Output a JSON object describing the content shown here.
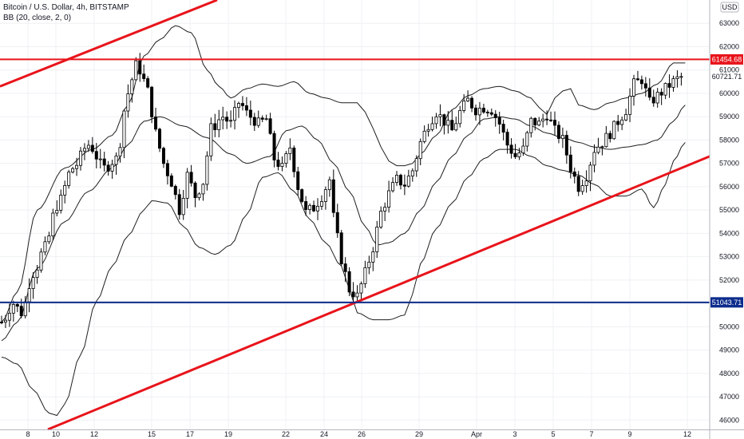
{
  "legend": {
    "symbol": "Bitcoin / U.S. Dollar, 4h, BITSTAMP",
    "indicator": "BB (20, close, 2, 0)"
  },
  "currency_badge": "USD",
  "colors": {
    "up": "#ffffff",
    "down": "#000000",
    "red_line": "#e8141b",
    "blue_line": "#0d2c8c",
    "bb": "#1f1f1f",
    "grid": "#eef0f3"
  },
  "chart_data": {
    "type": "candlestick",
    "title": "Bitcoin / U.S. Dollar, 4h, BITSTAMP",
    "ylim": [
      45600,
      64000
    ],
    "y_ticks": [
      46000,
      47000,
      48000,
      49000,
      50000,
      51000,
      52000,
      53000,
      54000,
      55000,
      56000,
      57000,
      58000,
      59000,
      60000,
      61000,
      62000,
      63000
    ],
    "x_ticks": [
      "8",
      "10",
      "12",
      "15",
      "17",
      "19",
      "22",
      "24",
      "26",
      "29",
      "Apr",
      "3",
      "5",
      "7",
      "9",
      "12"
    ],
    "horizontal_lines": [
      {
        "value": 61454.68,
        "label": "61454.68",
        "color": "#e8141b"
      },
      {
        "value": 51043.71,
        "label": "51043.71",
        "color": "#0d2c8c"
      }
    ],
    "last_price_label": "60721.71",
    "trend_lines": [
      {
        "color": "#e8141b",
        "points": [
          [
            "Mar 4",
            60300
          ],
          [
            "Mar 12 12:00",
            64000
          ]
        ]
      },
      {
        "color": "#e8141b",
        "points": [
          [
            "Mar 9",
            45600
          ],
          [
            "Apr 13",
            57300
          ]
        ]
      }
    ],
    "bb_anchors": {
      "upper": [
        [
          0,
          50200
        ],
        [
          4,
          51500
        ],
        [
          9,
          55000
        ],
        [
          16,
          56800
        ],
        [
          23,
          57600
        ],
        [
          28,
          58200
        ],
        [
          32,
          59500
        ],
        [
          36,
          61600
        ],
        [
          40,
          62300
        ],
        [
          44,
          62900
        ],
        [
          48,
          62600
        ],
        [
          52,
          61000
        ],
        [
          55,
          60300
        ],
        [
          58,
          59800
        ],
        [
          62,
          60200
        ],
        [
          66,
          60400
        ],
        [
          70,
          60300
        ],
        [
          74,
          60500
        ],
        [
          78,
          60000
        ],
        [
          82,
          59800
        ],
        [
          86,
          59600
        ],
        [
          90,
          59600
        ],
        [
          92,
          59200
        ],
        [
          94,
          58500
        ],
        [
          96,
          57700
        ],
        [
          98,
          57100
        ],
        [
          100,
          56900
        ],
        [
          102,
          56900
        ],
        [
          104,
          57000
        ],
        [
          106,
          57400
        ],
        [
          110,
          58200
        ],
        [
          114,
          59300
        ],
        [
          118,
          59900
        ],
        [
          122,
          60200
        ],
        [
          126,
          60300
        ],
        [
          130,
          60100
        ],
        [
          134,
          59800
        ],
        [
          136,
          59400
        ],
        [
          138,
          59100
        ],
        [
          140,
          59800
        ],
        [
          142,
          60100
        ],
        [
          144,
          60200
        ],
        [
          146,
          59500
        ],
        [
          150,
          59300
        ],
        [
          154,
          59600
        ],
        [
          158,
          59800
        ],
        [
          162,
          60000
        ],
        [
          166,
          60400
        ],
        [
          170,
          61300
        ],
        [
          173,
          61300
        ]
      ],
      "middle": [
        [
          0,
          49400
        ],
        [
          4,
          50200
        ],
        [
          9,
          52500
        ],
        [
          16,
          54500
        ],
        [
          22,
          55800
        ],
        [
          28,
          56800
        ],
        [
          32,
          57800
        ],
        [
          36,
          58800
        ],
        [
          40,
          59000
        ],
        [
          46,
          58600
        ],
        [
          52,
          58100
        ],
        [
          58,
          57400
        ],
        [
          62,
          57000
        ],
        [
          68,
          57300
        ],
        [
          72,
          58400
        ],
        [
          76,
          58600
        ],
        [
          80,
          58000
        ],
        [
          84,
          57000
        ],
        [
          88,
          55800
        ],
        [
          92,
          54300
        ],
        [
          95,
          53500
        ],
        [
          98,
          53600
        ],
        [
          102,
          54000
        ],
        [
          106,
          55000
        ],
        [
          110,
          56200
        ],
        [
          114,
          57300
        ],
        [
          118,
          58200
        ],
        [
          122,
          58900
        ],
        [
          126,
          59000
        ],
        [
          130,
          58900
        ],
        [
          134,
          58600
        ],
        [
          138,
          58300
        ],
        [
          142,
          58100
        ],
        [
          146,
          57900
        ],
        [
          150,
          57700
        ],
        [
          154,
          57600
        ],
        [
          158,
          57700
        ],
        [
          162,
          57800
        ],
        [
          166,
          58000
        ],
        [
          170,
          58800
        ],
        [
          173,
          59500
        ]
      ],
      "lower": [
        [
          0,
          48700
        ],
        [
          4,
          48400
        ],
        [
          8,
          47300
        ],
        [
          12,
          46300
        ],
        [
          14,
          46200
        ],
        [
          16,
          46700
        ],
        [
          20,
          48800
        ],
        [
          24,
          51100
        ],
        [
          28,
          52600
        ],
        [
          32,
          53900
        ],
        [
          36,
          55000
        ],
        [
          38,
          55400
        ],
        [
          42,
          55300
        ],
        [
          46,
          54300
        ],
        [
          50,
          53400
        ],
        [
          54,
          53100
        ],
        [
          58,
          53500
        ],
        [
          62,
          54800
        ],
        [
          66,
          56400
        ],
        [
          70,
          56600
        ],
        [
          74,
          55800
        ],
        [
          78,
          54600
        ],
        [
          82,
          53600
        ],
        [
          86,
          52600
        ],
        [
          88,
          51600
        ],
        [
          90,
          50600
        ],
        [
          94,
          50300
        ],
        [
          98,
          50300
        ],
        [
          102,
          50500
        ],
        [
          104,
          51400
        ],
        [
          106,
          52700
        ],
        [
          110,
          54200
        ],
        [
          114,
          55300
        ],
        [
          118,
          56400
        ],
        [
          122,
          57200
        ],
        [
          126,
          57600
        ],
        [
          130,
          57600
        ],
        [
          134,
          57300
        ],
        [
          138,
          56900
        ],
        [
          142,
          56700
        ],
        [
          146,
          56500
        ],
        [
          150,
          56100
        ],
        [
          154,
          55600
        ],
        [
          158,
          55600
        ],
        [
          162,
          55900
        ],
        [
          165,
          55100
        ],
        [
          168,
          56100
        ],
        [
          170,
          57100
        ],
        [
          173,
          57900
        ]
      ]
    },
    "price_path_anchors": [
      [
        0,
        50200
      ],
      [
        3,
        51000
      ],
      [
        5,
        50600
      ],
      [
        8,
        52300
      ],
      [
        11,
        53400
      ],
      [
        14,
        55200
      ],
      [
        18,
        56800
      ],
      [
        22,
        57800
      ],
      [
        26,
        56800
      ],
      [
        29,
        57200
      ],
      [
        32,
        60000
      ],
      [
        34,
        61200
      ],
      [
        35,
        61000
      ],
      [
        37,
        60100
      ],
      [
        39,
        58300
      ],
      [
        41,
        57000
      ],
      [
        43,
        56200
      ],
      [
        45,
        55000
      ],
      [
        47,
        56500
      ],
      [
        49,
        55600
      ],
      [
        51,
        56200
      ],
      [
        53,
        58500
      ],
      [
        56,
        59000
      ],
      [
        58,
        58700
      ],
      [
        60,
        59600
      ],
      [
        63,
        59000
      ],
      [
        65,
        58700
      ],
      [
        67,
        58900
      ],
      [
        69,
        57200
      ],
      [
        71,
        56800
      ],
      [
        73,
        57700
      ],
      [
        75,
        56000
      ],
      [
        77,
        54900
      ],
      [
        79,
        55100
      ],
      [
        81,
        55600
      ],
      [
        83,
        56300
      ],
      [
        84,
        54700
      ],
      [
        86,
        52900
      ],
      [
        88,
        51600
      ],
      [
        90,
        51300
      ],
      [
        92,
        52300
      ],
      [
        94,
        53400
      ],
      [
        96,
        54900
      ],
      [
        98,
        55700
      ],
      [
        100,
        56300
      ],
      [
        102,
        56100
      ],
      [
        104,
        56700
      ],
      [
        106,
        57900
      ],
      [
        108,
        58700
      ],
      [
        110,
        59200
      ],
      [
        112,
        58800
      ],
      [
        114,
        58400
      ],
      [
        116,
        59200
      ],
      [
        118,
        59700
      ],
      [
        120,
        59300
      ],
      [
        122,
        59400
      ],
      [
        124,
        59300
      ],
      [
        126,
        58700
      ],
      [
        128,
        57800
      ],
      [
        130,
        57300
      ],
      [
        132,
        57600
      ],
      [
        134,
        58800
      ],
      [
        136,
        58700
      ],
      [
        138,
        59100
      ],
      [
        140,
        58400
      ],
      [
        142,
        58000
      ],
      [
        144,
        56800
      ],
      [
        146,
        56000
      ],
      [
        148,
        56500
      ],
      [
        150,
        57600
      ],
      [
        152,
        57900
      ],
      [
        154,
        58300
      ],
      [
        156,
        58800
      ],
      [
        158,
        59300
      ],
      [
        160,
        60400
      ],
      [
        162,
        60600
      ],
      [
        164,
        59600
      ],
      [
        166,
        59900
      ],
      [
        168,
        60200
      ],
      [
        170,
        60500
      ],
      [
        172,
        60721.71
      ]
    ]
  }
}
